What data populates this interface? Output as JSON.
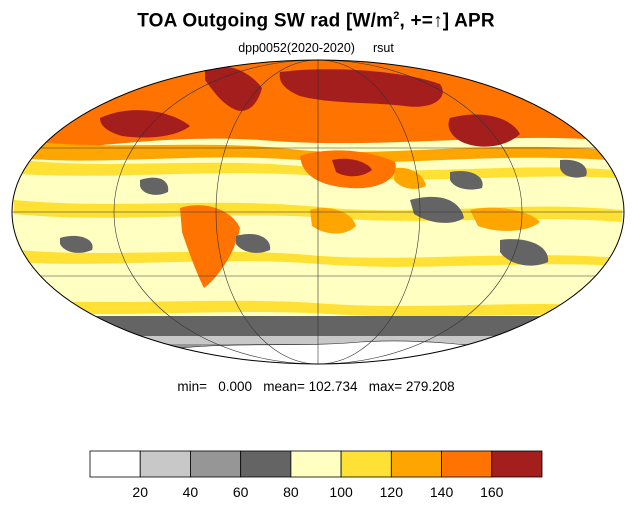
{
  "title": {
    "main": "TOA Outgoing SW rad [W/m",
    "exponent": "2",
    "tail": ", +=",
    "arrow": "↑",
    "end": "] APR"
  },
  "subtitle": {
    "dataset": "dpp0052(2020-2020)",
    "variable": "rsut"
  },
  "stats": {
    "text": "min=   0.000   mean= 102.734   max= 279.208"
  },
  "chart_data": {
    "type": "heatmap",
    "projection": "mollweide",
    "title": "TOA Outgoing SW rad [W/m2, +=↑] APR",
    "subtitle": "dpp0052(2020-2020)   rsut",
    "min": 0.0,
    "mean": 102.734,
    "max": 279.208,
    "colorbar": {
      "levels": [
        20,
        40,
        60,
        80,
        100,
        120,
        140,
        160
      ],
      "tick_labels": [
        "20",
        "40",
        "60",
        "80",
        "100",
        "120",
        "140",
        "160"
      ],
      "colors": [
        "#ffffff",
        "#c8c8c8",
        "#969696",
        "#646464",
        "#ffffc2",
        "#ffe135",
        "#ffa500",
        "#ff7300",
        "#a51e1e"
      ]
    }
  },
  "colors": {
    "ocean_base": "#ffffc2",
    "graticule": "#333333",
    "coast": "#222222"
  }
}
